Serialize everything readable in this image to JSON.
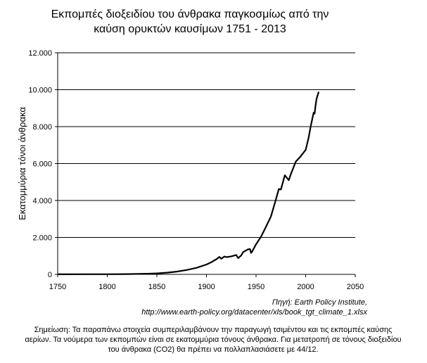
{
  "title": {
    "line1": "Εκπομπές διοξειδίου του άνθρακα παγκοσμίως από την",
    "line2": "καύση ορυκτών καυσίμων 1751 - 2013"
  },
  "source": {
    "line1": "Πηγή: Earth Policy Institute,",
    "line2": "http://www.earth-policy.org/datacenter/xls/book_tgt_climate_1.xlsx"
  },
  "note": {
    "line1": "Σημείωση: Τα παραπάνω στοιχεία συμπεριλαμβάνουν την παραγωγή τσιμέντου και τις εκπομπές καύσης",
    "line2": "αερίων. Τα νούμερα των εκπομπών είναι σε εκατομμύρια τόνους άνθρακα. Για μετατροπή σε τόνους διοξειδίου",
    "line3": "του άνθρακα (CO2) θα πρέπει να πολλαπλασιάσετε με 44/12."
  },
  "chart_data": {
    "type": "line",
    "title": "Εκπομπές διοξειδίου του άνθρακα παγκοσμίως από την καύση ορυκτών καυσίμων 1751 - 2013",
    "xlabel": "",
    "ylabel": "Εκατομμύρια τόνοι άνθρακα",
    "xlim": [
      1750,
      2050
    ],
    "ylim": [
      0,
      12000
    ],
    "x_ticks": [
      1750,
      1800,
      1850,
      1900,
      1950,
      2000,
      2050
    ],
    "x_tick_labels": [
      "1750",
      "1800",
      "1850",
      "1900",
      "1950",
      "2000",
      "2050"
    ],
    "y_ticks": [
      0,
      2000,
      4000,
      6000,
      8000,
      10000,
      12000
    ],
    "y_tick_labels": [
      "0",
      "2.000",
      "4.000",
      "6.000",
      "8.000",
      "10.000",
      "12.000"
    ],
    "grid": "horizontal",
    "line_color": "#000000",
    "series": [
      {
        "x": [
          1751,
          1780,
          1800,
          1820,
          1840,
          1850,
          1860,
          1870,
          1880,
          1890,
          1900,
          1905,
          1910,
          1913,
          1915,
          1918,
          1920,
          1925,
          1930,
          1932,
          1935,
          1937,
          1940,
          1942,
          1944,
          1945,
          1946,
          1950,
          1955,
          1960,
          1965,
          1970,
          1973,
          1975,
          1979,
          1980,
          1983,
          1985,
          1990,
          1995,
          2000,
          2003,
          2005,
          2008,
          2009,
          2010,
          2011,
          2013
        ],
        "y": [
          3,
          7,
          8,
          14,
          33,
          54,
          91,
          147,
          236,
          356,
          534,
          663,
          819,
          943,
          845,
          968,
          932,
          975,
          1053,
          881,
          1024,
          1209,
          1299,
          1359,
          1367,
          1160,
          1236,
          1630,
          2043,
          2577,
          3130,
          4053,
          4623,
          4596,
          5368,
          5299,
          5100,
          5422,
          6098,
          6394,
          6740,
          7400,
          8000,
          8750,
          8700,
          9150,
          9500,
          9855
        ]
      }
    ]
  }
}
